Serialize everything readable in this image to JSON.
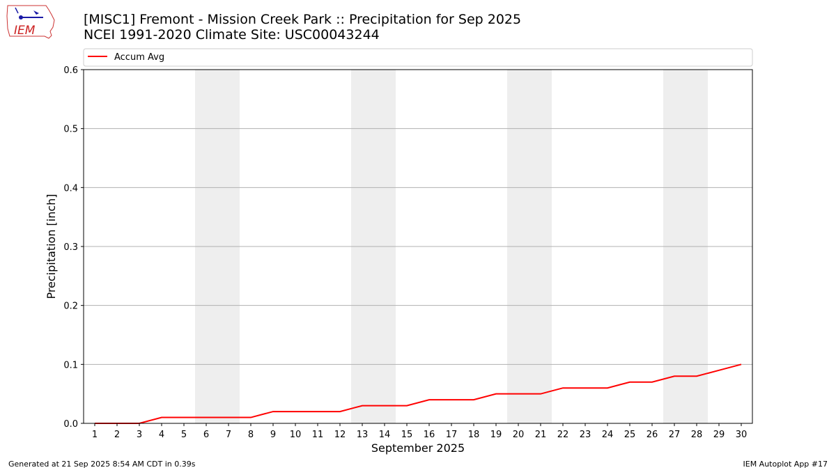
{
  "logo": {
    "text": "IEM"
  },
  "chart_data": {
    "type": "line",
    "title": "[MISC1] Fremont - Mission Creek Park :: Precipitation for Sep 2025",
    "subtitle": "NCEI 1991-2020 Climate Site: USC00043244",
    "xlabel": "September 2025",
    "ylabel": "Precipitation [inch]",
    "ylim": [
      0,
      0.6
    ],
    "yticks": [
      "0.0",
      "0.1",
      "0.2",
      "0.3",
      "0.4",
      "0.5",
      "0.6"
    ],
    "x": [
      1,
      2,
      3,
      4,
      5,
      6,
      7,
      8,
      9,
      10,
      11,
      12,
      13,
      14,
      15,
      16,
      17,
      18,
      19,
      20,
      21,
      22,
      23,
      24,
      25,
      26,
      27,
      28,
      29,
      30
    ],
    "weekend_days": [
      [
        6,
        7
      ],
      [
        13,
        14
      ],
      [
        20,
        21
      ],
      [
        27,
        28
      ]
    ],
    "grid": true,
    "legend_position": "top",
    "series": [
      {
        "name": "Accum Avg",
        "color": "#ff0000",
        "values": [
          0,
          0,
          0,
          0.01,
          0.01,
          0.01,
          0.01,
          0.01,
          0.02,
          0.02,
          0.02,
          0.02,
          0.03,
          0.03,
          0.03,
          0.04,
          0.04,
          0.04,
          0.05,
          0.05,
          0.05,
          0.06,
          0.06,
          0.06,
          0.07,
          0.07,
          0.08,
          0.08,
          0.09,
          0.1
        ]
      }
    ]
  },
  "footer": {
    "generated": "Generated at 21 Sep 2025 8:54 AM CDT in 0.39s",
    "app": "IEM Autoplot App #17"
  }
}
